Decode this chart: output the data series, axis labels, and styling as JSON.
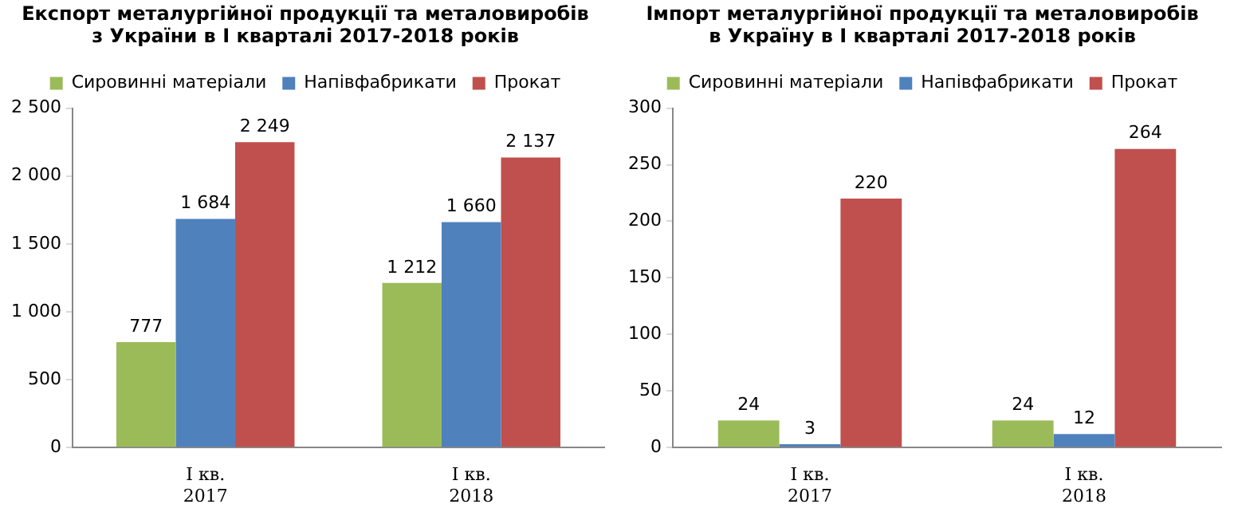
{
  "chart_data": [
    {
      "type": "bar",
      "title": "Експорт металургійної продукції та металовиробів\nз України в І кварталі 2017-2018 років",
      "categories": [
        "І кв.\n2017",
        "І кв.\n2018"
      ],
      "legend": "top",
      "grid": false,
      "series": [
        {
          "name": "Сировинні матеріали",
          "color": "#9bbb59",
          "values": [
            777,
            1212
          ],
          "value_labels": [
            "777",
            "1 212"
          ]
        },
        {
          "name": "Напівфабрикати",
          "color": "#4f81bd",
          "values": [
            1684,
            1660
          ],
          "value_labels": [
            "1 684",
            "1 660"
          ]
        },
        {
          "name": "Прокат",
          "color": "#c0504d",
          "values": [
            2249,
            2137
          ],
          "value_labels": [
            "2 249",
            "2 137"
          ]
        }
      ],
      "ylim": [
        0,
        2500
      ],
      "yticks": [
        0,
        500,
        {
          "value": 1000,
          "label": "1 000"
        },
        {
          "value": 1500,
          "label": "1 500"
        },
        {
          "value": 2000,
          "label": "2 000"
        },
        {
          "value": 2500,
          "label": "2 500"
        }
      ]
    },
    {
      "type": "bar",
      "title": "Імпорт металургійної продукції та металовиробів\nв Україну в І кварталі 2017-2018 років",
      "categories": [
        "І кв.\n2017",
        "І кв.\n2018"
      ],
      "legend": "top",
      "grid": false,
      "series": [
        {
          "name": "Сировинні матеріали",
          "color": "#9bbb59",
          "values": [
            24,
            24
          ],
          "value_labels": [
            "24",
            "24"
          ]
        },
        {
          "name": "Напівфабрикати",
          "color": "#4f81bd",
          "values": [
            3,
            12
          ],
          "value_labels": [
            "3",
            "12"
          ]
        },
        {
          "name": "Прокат",
          "color": "#c0504d",
          "values": [
            220,
            264
          ],
          "value_labels": [
            "220",
            "264"
          ]
        }
      ],
      "ylim": [
        0,
        300
      ],
      "yticks": [
        0,
        50,
        100,
        150,
        200,
        250,
        300
      ]
    }
  ]
}
